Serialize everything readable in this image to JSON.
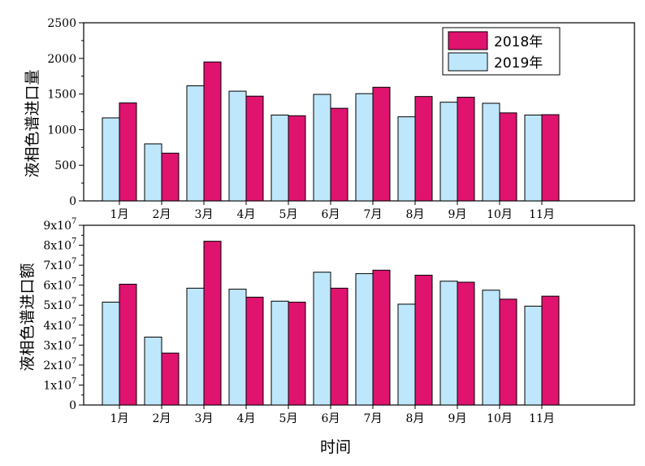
{
  "colors": {
    "s2018": "#e0136f",
    "s2019": "#bfe7fb",
    "edge": "#000000"
  },
  "chart_data": [
    {
      "type": "bar",
      "categories": [
        "1月",
        "2月",
        "3月",
        "4月",
        "5月",
        "6月",
        "7月",
        "8月",
        "9月",
        "10月",
        "11月"
      ],
      "series": [
        {
          "name": "2019年",
          "values": [
            1165,
            800,
            1615,
            1540,
            1205,
            1495,
            1505,
            1180,
            1385,
            1370,
            1205
          ]
        },
        {
          "name": "2018年",
          "values": [
            1375,
            670,
            1950,
            1470,
            1195,
            1300,
            1595,
            1465,
            1455,
            1235,
            1210
          ]
        }
      ],
      "xlabel": "时间",
      "ylabel": "液相色谱进口量",
      "ylim": [
        0,
        2500
      ],
      "yticks": [
        "0",
        "500",
        "1000",
        "1500",
        "2000",
        "2500"
      ],
      "legend": {
        "placement": "top-right",
        "entries": [
          "2018年",
          "2019年"
        ]
      }
    },
    {
      "type": "bar",
      "categories": [
        "1月",
        "2月",
        "3月",
        "4月",
        "5月",
        "6月",
        "7月",
        "8月",
        "9月",
        "10月",
        "11月"
      ],
      "series": [
        {
          "name": "2019年",
          "values": [
            51500000,
            34000000,
            58500000,
            58000000,
            52000000,
            66500000,
            65800000,
            50500000,
            62000000,
            57500000,
            49500000
          ]
        },
        {
          "name": "2018年",
          "values": [
            60500000,
            26000000,
            82000000,
            54000000,
            51500000,
            58500000,
            67500000,
            65000000,
            61500000,
            53000000,
            54500000
          ]
        }
      ],
      "xlabel": "时间",
      "ylabel": "液相色谱进口额",
      "ylim": [
        0,
        90000000
      ],
      "yticks": [
        {
          "mant": "0",
          "exp": ""
        },
        {
          "mant": "1x10",
          "exp": "7"
        },
        {
          "mant": "2x10",
          "exp": "7"
        },
        {
          "mant": "3x10",
          "exp": "7"
        },
        {
          "mant": "4x10",
          "exp": "7"
        },
        {
          "mant": "5x10",
          "exp": "7"
        },
        {
          "mant": "6x10",
          "exp": "7"
        },
        {
          "mant": "7x10",
          "exp": "7"
        },
        {
          "mant": "8x10",
          "exp": "7"
        },
        {
          "mant": "9x10",
          "exp": "7"
        }
      ]
    }
  ]
}
